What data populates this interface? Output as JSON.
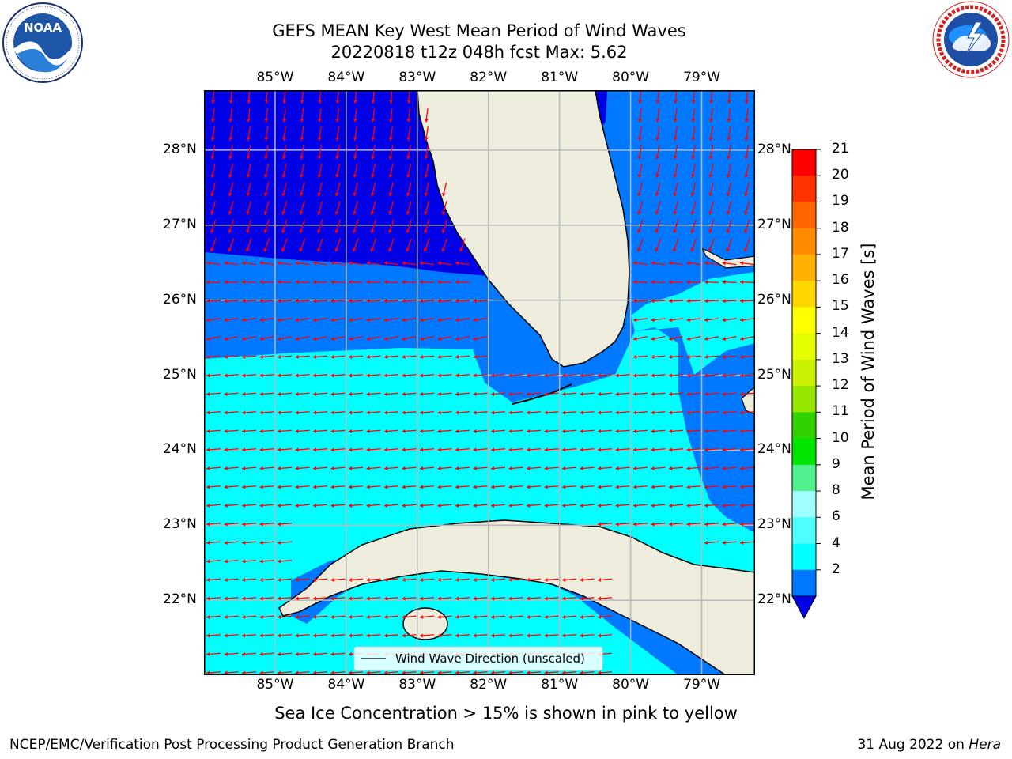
{
  "title": {
    "line1": "GEFS MEAN Key West Mean Period of Wind Waves",
    "line2": "20220818 t12z 048h fcst   Max: 5.62"
  },
  "logos": {
    "left": {
      "text": "NOAA",
      "ring_text": "NATIONAL OCEANIC AND ATMOSPHERIC ADMINISTRATION · U.S. DEPARTMENT OF COMMERCE"
    },
    "right": {
      "ring_text": "NATIONAL WEATHER SERVICE"
    }
  },
  "map": {
    "lon_labels": [
      "85°W",
      "84°W",
      "83°W",
      "82°W",
      "81°W",
      "80°W",
      "79°W"
    ],
    "lat_labels": [
      "28°N",
      "27°N",
      "26°N",
      "25°N",
      "24°N",
      "23°N",
      "22°N"
    ],
    "extent": {
      "lon": [
        -86.0,
        -78.25
      ],
      "lat": [
        21.0,
        28.8
      ]
    },
    "legend_text": "Wind Wave Direction (unscaled)",
    "colors": {
      "ocean_deep": "#0000e6",
      "ocean_mid": "#0078ff",
      "ocean_light": "#00ffff",
      "land": "#eeecdd",
      "arrow": "#ff0000",
      "grid": "#b8b8b8"
    }
  },
  "colorbar": {
    "label": "Mean Period of Wind Waves [s]",
    "ticks": [
      "21",
      "20",
      "19",
      "18",
      "17",
      "16",
      "15",
      "14",
      "13",
      "12",
      "11",
      "10",
      "9",
      "8",
      "6",
      "4",
      "2"
    ],
    "colors": [
      "#ff0000",
      "#ff3300",
      "#ff6600",
      "#ff8c00",
      "#ffb000",
      "#ffd700",
      "#ffff00",
      "#e6ff00",
      "#c8f000",
      "#96e600",
      "#32d200",
      "#00e600",
      "#50f08c",
      "#a0ffff",
      "#50ffff",
      "#00ffff",
      "#0078ff"
    ],
    "under_color": "#0000e6"
  },
  "note": "Sea Ice Concentration > 15% is shown in pink to yellow",
  "footer": {
    "left": "NCEP/EMC/Verification Post Processing Product Generation Branch",
    "date": "31 Aug 2022 on",
    "machine": "Hera"
  }
}
